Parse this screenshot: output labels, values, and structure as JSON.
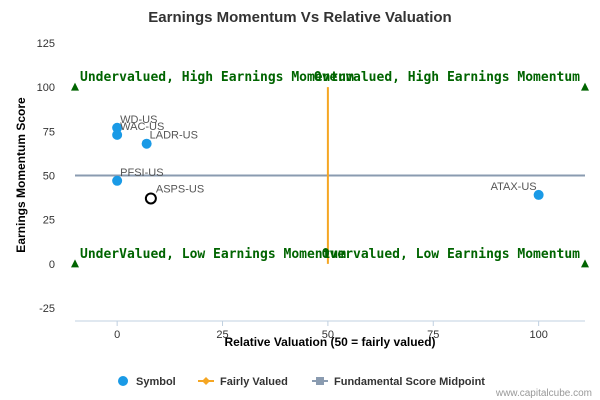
{
  "chart_data": {
    "type": "scatter",
    "title": "Earnings Momentum Vs Relative Valuation",
    "xlabel": "Relative Valuation (50 = fairly valued)",
    "ylabel": "Earnings Momentum Score",
    "xlim": [
      -10,
      111
    ],
    "ylim": [
      -25,
      125
    ],
    "x_ticks": [
      0,
      25,
      50,
      75,
      100
    ],
    "y_ticks": [
      -25,
      0,
      25,
      50,
      75,
      100,
      125
    ],
    "grid": false,
    "legend_position": "bottom",
    "points": [
      {
        "label": "WD-US",
        "x": 0,
        "y": 77,
        "highlight": false
      },
      {
        "label": "WAC-US",
        "x": 0,
        "y": 73,
        "highlight": false
      },
      {
        "label": "LADR-US",
        "x": 7,
        "y": 68,
        "highlight": false
      },
      {
        "label": "PFSI-US",
        "x": 0,
        "y": 47,
        "highlight": false
      },
      {
        "label": "ASPS-US",
        "x": 8,
        "y": 37,
        "highlight": true
      },
      {
        "label": "ATAX-US",
        "x": 100,
        "y": 39,
        "highlight": false
      }
    ],
    "fairly_valued_x": 50,
    "midpoint_y": 50,
    "corner_markers": [
      {
        "x": -10,
        "y": 100
      },
      {
        "x": 111,
        "y": 100
      },
      {
        "x": -10,
        "y": 0
      },
      {
        "x": 111,
        "y": 0
      }
    ],
    "quadrant_labels": [
      {
        "text": "Undervalued, High Earnings Momentum",
        "x": -10,
        "y": 100,
        "anchor": "start"
      },
      {
        "text": "Overvalued, High Earnings Momentum",
        "x": 111,
        "y": 100,
        "anchor": "end"
      },
      {
        "text": "UnderValued, Low Earnings Momentum",
        "x": -10,
        "y": 0,
        "anchor": "start"
      },
      {
        "text": "Overvalued, Low Earnings Momentum",
        "x": 111,
        "y": 0,
        "anchor": "end"
      }
    ],
    "legend": [
      {
        "name": "Symbol",
        "kind": "dot"
      },
      {
        "name": "Fairly Valued",
        "kind": "line-diamond"
      },
      {
        "name": "Fundamental Score Midpoint",
        "kind": "line-square"
      }
    ],
    "colors": {
      "symbol": "#1a9ae6",
      "fairly_valued": "#f5a623",
      "midpoint": "#8a9bb0",
      "quadrant_text": "#006400",
      "marker": "#006400",
      "highlight_stroke": "#000000"
    }
  },
  "credit": "www.capitalcube.com"
}
